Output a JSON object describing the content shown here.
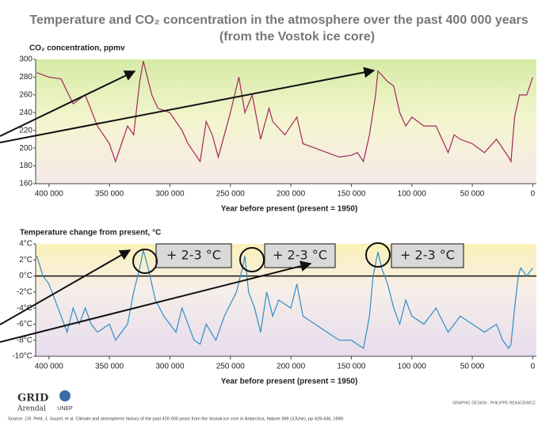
{
  "title": "Temperature and CO₂ concentration in the atmosphere over the past 400 000 years",
  "subtitle": "(from the Vostok ice core)",
  "logo": {
    "name": "GRID",
    "place": "Arendal",
    "partner": "UNEP"
  },
  "credit": "GRAPHIC DESIGN : PHILIPPE REKACEWICZ",
  "source": "Source: J.R. Petit, J. Jouzel, et al. Climate and atmospheric history of the past 420 000 years from the Vostok ice core in Antarctica, Nature 399 (3JUne), pp 429-436, 1999.",
  "chart_data": [
    {
      "type": "line",
      "y_label": "CO₂ concentration, ppmv",
      "x_label": "Year before present (present = 1950)",
      "color": "#a3285e",
      "x": [
        410000,
        400000,
        390000,
        380000,
        370000,
        360000,
        350000,
        345000,
        340000,
        335000,
        330000,
        325000,
        322000,
        315000,
        310000,
        300000,
        290000,
        285000,
        280000,
        275000,
        270000,
        265000,
        260000,
        250000,
        243000,
        238000,
        232000,
        225000,
        218000,
        215000,
        205000,
        195000,
        190000,
        180000,
        170000,
        160000,
        150000,
        145000,
        140000,
        135000,
        130000,
        128000,
        120000,
        115000,
        110000,
        105000,
        100000,
        90000,
        80000,
        70000,
        65000,
        60000,
        50000,
        40000,
        30000,
        20000,
        18000,
        15000,
        11000,
        5000,
        0
      ],
      "values": [
        285,
        280,
        278,
        250,
        260,
        225,
        205,
        185,
        205,
        225,
        215,
        275,
        298,
        260,
        245,
        240,
        220,
        205,
        195,
        185,
        230,
        215,
        190,
        240,
        280,
        240,
        260,
        210,
        245,
        230,
        215,
        235,
        205,
        200,
        195,
        190,
        192,
        195,
        185,
        215,
        260,
        287,
        275,
        270,
        240,
        225,
        235,
        225,
        225,
        195,
        215,
        210,
        205,
        195,
        210,
        190,
        185,
        235,
        260,
        260,
        280
      ],
      "xlim": [
        411000,
        -3000
      ],
      "ylim": [
        160,
        300
      ],
      "xticks": [
        {
          "value": 400000,
          "label": "400 000"
        },
        {
          "value": 350000,
          "label": "350 000"
        },
        {
          "value": 300000,
          "label": "300 000"
        },
        {
          "value": 250000,
          "label": "250 000"
        },
        {
          "value": 200000,
          "label": "200 000"
        },
        {
          "value": 150000,
          "label": "150 000"
        },
        {
          "value": 100000,
          "label": "100 000"
        },
        {
          "value": 50000,
          "label": "50 000"
        },
        0
      ],
      "yticks": [
        160,
        180,
        200,
        220,
        240,
        260,
        280,
        300
      ]
    },
    {
      "type": "line",
      "y_label": "Temperature change from present, °C",
      "x_label": "Year before present (present = 1950)",
      "color": "#2f8ec6",
      "zero_line": true,
      "annotations": [
        "+ 2-3 °C",
        "+ 2-3 °C",
        "+ 2-3 °C"
      ],
      "x": [
        410000,
        405000,
        400000,
        395000,
        390000,
        385000,
        380000,
        375000,
        370000,
        365000,
        360000,
        350000,
        345000,
        340000,
        335000,
        330000,
        325000,
        322000,
        318000,
        312000,
        305000,
        300000,
        295000,
        290000,
        285000,
        280000,
        275000,
        270000,
        262000,
        255000,
        245000,
        240000,
        238000,
        235000,
        230000,
        225000,
        220000,
        215000,
        210000,
        200000,
        195000,
        190000,
        180000,
        170000,
        160000,
        150000,
        140000,
        135000,
        132000,
        128000,
        125000,
        120000,
        115000,
        110000,
        105000,
        100000,
        90000,
        80000,
        70000,
        60000,
        50000,
        40000,
        30000,
        25000,
        20000,
        18000,
        15000,
        12000,
        10000,
        5000,
        0
      ],
      "values": [
        2.5,
        0,
        -1,
        -3,
        -5,
        -7,
        -4,
        -6,
        -4,
        -6,
        -7,
        -6,
        -8,
        -7,
        -6,
        -2,
        1,
        3.2,
        1,
        -3,
        -5,
        -6,
        -7,
        -4,
        -6,
        -8,
        -8.5,
        -6,
        -8,
        -5,
        -2,
        1,
        2.5,
        -2,
        -4,
        -7,
        -2,
        -5,
        -3,
        -4,
        -1,
        -5,
        -6,
        -7,
        -8,
        -8,
        -9,
        -5,
        0,
        3,
        1,
        -1,
        -4,
        -6,
        -3,
        -5,
        -6,
        -4,
        -7,
        -5,
        -6,
        -7,
        -6,
        -8,
        -9,
        -8.5,
        -4,
        0,
        1,
        0,
        1
      ],
      "xlim": [
        411000,
        -3000
      ],
      "ylim": [
        -10,
        4
      ],
      "xticks": [
        {
          "value": 400000,
          "label": "400 000"
        },
        {
          "value": 350000,
          "label": "350 000"
        },
        {
          "value": 300000,
          "label": "300 000"
        },
        {
          "value": 250000,
          "label": "250 000"
        },
        {
          "value": 200000,
          "label": "200 000"
        },
        {
          "value": 150000,
          "label": "150 000"
        },
        {
          "value": 100000,
          "label": "100 000"
        },
        {
          "value": 50000,
          "label": "50 000"
        },
        0
      ],
      "yticks": [
        {
          "value": 4,
          "label": "4°C"
        },
        {
          "value": 2,
          "label": "2°C"
        },
        {
          "value": 0,
          "label": "0°C"
        },
        {
          "value": -2,
          "label": "-2°C"
        },
        {
          "value": -4,
          "label": "-4°C"
        },
        {
          "value": -6,
          "label": "-6°C"
        },
        {
          "value": -8,
          "label": "-8°C"
        },
        {
          "value": -10,
          "label": "-10°C"
        }
      ]
    }
  ]
}
